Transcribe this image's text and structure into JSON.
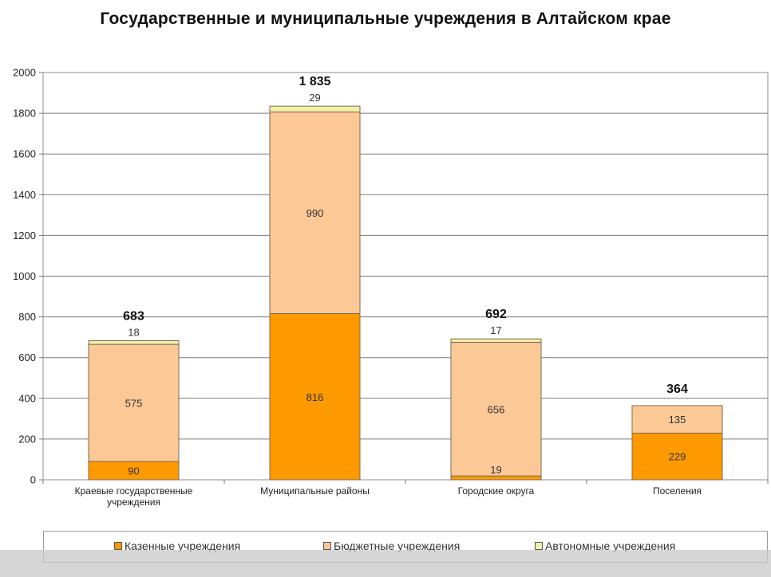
{
  "chart_data": {
    "type": "bar",
    "stacked": true,
    "title": "Государственные  и муниципальные  учреждения  в Алтайском крае",
    "categories": [
      [
        "Краевые государственные",
        "учреждения"
      ],
      [
        "Муниципальные районы"
      ],
      [
        "Городские округа"
      ],
      [
        "Поселения"
      ]
    ],
    "series": [
      {
        "name": "Казенные учреждения",
        "values": [
          90,
          816,
          19,
          229
        ],
        "color": "#ff9900"
      },
      {
        "name": "Бюджетные учреждения",
        "values": [
          575,
          990,
          656,
          135
        ],
        "color": "#fcc896"
      },
      {
        "name": "Автономные учреждения",
        "values": [
          18,
          29,
          17,
          null
        ],
        "color": "#f0f0a8"
      }
    ],
    "totals": [
      "683",
      "1 835",
      "692",
      "364"
    ],
    "yticks": [
      0,
      200,
      400,
      600,
      800,
      1000,
      1200,
      1400,
      1600,
      1800,
      2000
    ],
    "ylim": [
      0,
      2000
    ],
    "grid": true,
    "legend_position": "bottom"
  }
}
